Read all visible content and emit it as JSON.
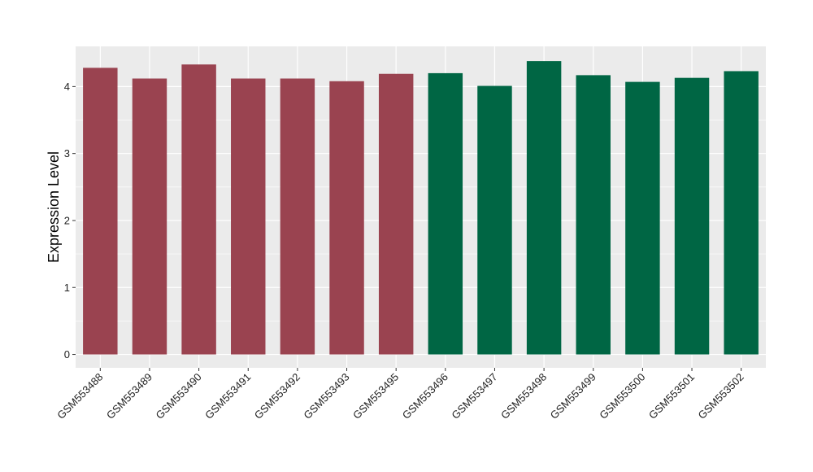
{
  "chart_data": {
    "type": "bar",
    "title": "",
    "xlabel": "",
    "ylabel": "Expression Level",
    "ylim": [
      -0.2,
      4.6
    ],
    "yticks": [
      0,
      1,
      2,
      3,
      4
    ],
    "grid": true,
    "categories": [
      "GSM553488",
      "GSM553489",
      "GSM553490",
      "GSM553491",
      "GSM553492",
      "GSM553493",
      "GSM553495",
      "GSM553496",
      "GSM553497",
      "GSM553498",
      "GSM553499",
      "GSM553500",
      "GSM553501",
      "GSM553502"
    ],
    "values": [
      4.28,
      4.12,
      4.33,
      4.12,
      4.12,
      4.08,
      4.19,
      4.2,
      4.01,
      4.38,
      4.17,
      4.07,
      4.13,
      4.23
    ],
    "group_colors": [
      "#9a4350",
      "#9a4350",
      "#9a4350",
      "#9a4350",
      "#9a4350",
      "#9a4350",
      "#9a4350",
      "#006644",
      "#006644",
      "#006644",
      "#006644",
      "#006644",
      "#006644",
      "#006644"
    ],
    "panel_background": "#ebebeb",
    "gridline_color": "#ffffff"
  }
}
